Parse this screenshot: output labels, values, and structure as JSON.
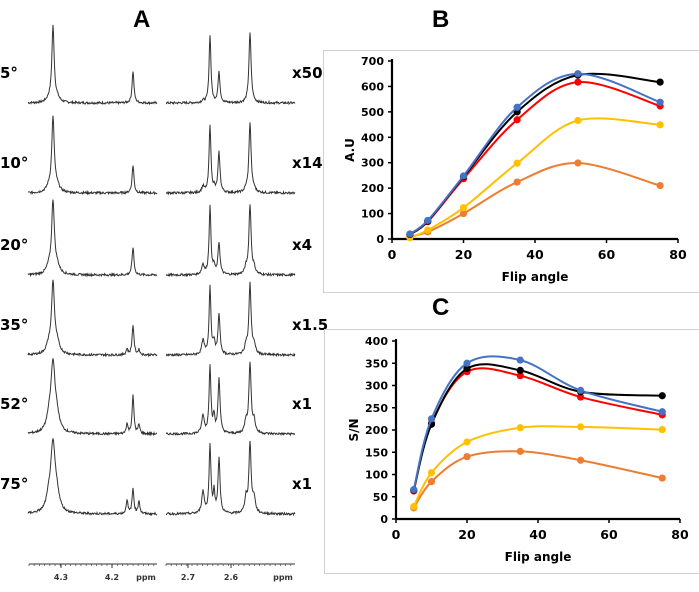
{
  "panels": {
    "A": "A",
    "B": "B",
    "C": "C"
  },
  "spectra": {
    "rows": [
      {
        "angle": "5°",
        "scale": "x50"
      },
      {
        "angle": "10°",
        "scale": "x14"
      },
      {
        "angle": "20°",
        "scale": "x4"
      },
      {
        "angle": "35°",
        "scale": "x1.5"
      },
      {
        "angle": "52°",
        "scale": "x1"
      },
      {
        "angle": "75°",
        "scale": "x1"
      }
    ],
    "left_axis": {
      "ticks": [
        "4.3",
        "4.2"
      ],
      "unit": "ppm"
    },
    "right_axis": {
      "ticks": [
        "2.7",
        "2.6"
      ],
      "unit": "ppm"
    }
  },
  "chart_data": [
    {
      "id": "B",
      "type": "line",
      "title": "B",
      "xlabel": "Flip angle",
      "ylabel": "A.U",
      "xlim": [
        0,
        80
      ],
      "ylim": [
        0,
        700
      ],
      "xticks": [
        0,
        20,
        40,
        60,
        80
      ],
      "yticks": [
        0,
        100,
        200,
        300,
        400,
        500,
        600,
        700
      ],
      "grid": false,
      "x": [
        5,
        10,
        20,
        35,
        52,
        75
      ],
      "series": [
        {
          "name": "black",
          "color": "#000000",
          "values": [
            18,
            70,
            245,
            500,
            645,
            617
          ]
        },
        {
          "name": "red",
          "color": "#ff0000",
          "values": [
            18,
            68,
            237,
            469,
            617,
            523
          ]
        },
        {
          "name": "blue",
          "color": "#4472c4",
          "values": [
            20,
            73,
            248,
            518,
            650,
            538
          ]
        },
        {
          "name": "yellow",
          "color": "#ffc000",
          "values": [
            5,
            35,
            123,
            298,
            466,
            449
          ]
        },
        {
          "name": "orange",
          "color": "#ed7d31",
          "values": [
            10,
            28,
            100,
            224,
            299,
            210
          ]
        }
      ]
    },
    {
      "id": "C",
      "type": "line",
      "title": "C",
      "xlabel": "Flip angle",
      "ylabel": "S/N",
      "xlim": [
        0,
        80
      ],
      "ylim": [
        0,
        400
      ],
      "xticks": [
        0,
        20,
        40,
        60,
        80
      ],
      "yticks": [
        0,
        50,
        100,
        150,
        200,
        250,
        300,
        350,
        400
      ],
      "grid": false,
      "x": [
        5,
        10,
        20,
        35,
        52,
        75
      ],
      "series": [
        {
          "name": "black",
          "color": "#000000",
          "values": [
            65,
            213,
            338,
            334,
            286,
            277
          ]
        },
        {
          "name": "red",
          "color": "#ff0000",
          "values": [
            63,
            215,
            331,
            322,
            274,
            234
          ]
        },
        {
          "name": "blue",
          "color": "#4472c4",
          "values": [
            66,
            225,
            350,
            357,
            289,
            241
          ]
        },
        {
          "name": "yellow",
          "color": "#ffc000",
          "values": [
            28,
            104,
            173,
            205,
            207,
            201
          ]
        },
        {
          "name": "orange",
          "color": "#ed7d31",
          "values": [
            25,
            84,
            140,
            152,
            132,
            92
          ]
        }
      ]
    }
  ]
}
